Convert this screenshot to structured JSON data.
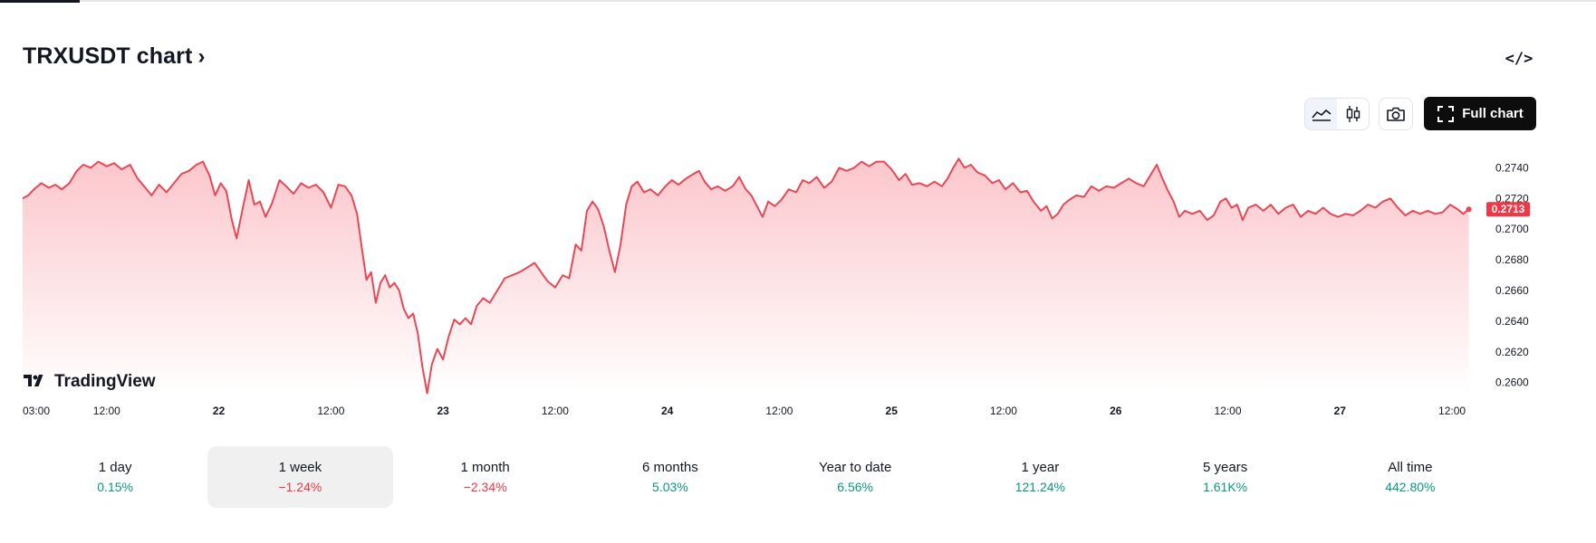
{
  "header": {
    "title": "TRXUSDT chart",
    "title_chevron": "›",
    "embed_label": "</>",
    "full_chart_label": "Full chart"
  },
  "colors": {
    "line": "#e84756",
    "area_top": "#fbc6cb",
    "area_bottom": "#ffffff",
    "price_badge": "#f23645",
    "positive": "#089981",
    "negative": "#f23645"
  },
  "icons": {
    "area_style": "area-chart-icon",
    "candle_style": "candlestick-icon",
    "screenshot": "camera-icon",
    "fullscreen": "fullscreen-icon",
    "brand": "tradingview-logo-icon"
  },
  "brand_text": "TradingView",
  "chart_data": {
    "type": "area",
    "title": "TRXUSDT chart",
    "xlabel": "",
    "ylabel": "",
    "last_price": 0.2713,
    "last_price_label": "0.2713",
    "ylim": [
      0.2591,
      0.2755
    ],
    "yticks": [
      "0.2740",
      "0.2720",
      "0.2700",
      "0.2680",
      "0.2660",
      "0.2640",
      "0.2620",
      "0.2600"
    ],
    "ytick_values": [
      0.274,
      0.272,
      0.27,
      0.268,
      0.266,
      0.264,
      0.262,
      0.26
    ],
    "xlim": [
      3,
      159
    ],
    "xticks": [
      {
        "t": 3,
        "label": "03:00",
        "bold": false
      },
      {
        "t": 12,
        "label": "12:00",
        "bold": false
      },
      {
        "t": 24,
        "label": "22",
        "bold": true
      },
      {
        "t": 36,
        "label": "12:00",
        "bold": false
      },
      {
        "t": 48,
        "label": "23",
        "bold": true
      },
      {
        "t": 60,
        "label": "12:00",
        "bold": false
      },
      {
        "t": 72,
        "label": "24",
        "bold": true
      },
      {
        "t": 84,
        "label": "12:00",
        "bold": false
      },
      {
        "t": 96,
        "label": "25",
        "bold": true
      },
      {
        "t": 108,
        "label": "12:00",
        "bold": false
      },
      {
        "t": 120,
        "label": "26",
        "bold": true
      },
      {
        "t": 132,
        "label": "12:00",
        "bold": false
      },
      {
        "t": 144,
        "label": "27",
        "bold": true
      },
      {
        "t": 156,
        "label": "12:00",
        "bold": false
      }
    ],
    "series": [
      {
        "points": [
          [
            3.0,
            0.272
          ],
          [
            3.6,
            0.2722
          ],
          [
            4.2,
            0.2726
          ],
          [
            5.0,
            0.273
          ],
          [
            5.8,
            0.2727
          ],
          [
            6.5,
            0.2729
          ],
          [
            7.2,
            0.2726
          ],
          [
            8.0,
            0.273
          ],
          [
            8.8,
            0.2738
          ],
          [
            9.5,
            0.2742
          ],
          [
            10.3,
            0.274
          ],
          [
            11.1,
            0.2744
          ],
          [
            12.0,
            0.2741
          ],
          [
            12.8,
            0.2743
          ],
          [
            13.6,
            0.2739
          ],
          [
            14.5,
            0.2742
          ],
          [
            15.3,
            0.2733
          ],
          [
            16.0,
            0.2728
          ],
          [
            16.8,
            0.2722
          ],
          [
            17.6,
            0.2729
          ],
          [
            18.4,
            0.2724
          ],
          [
            19.2,
            0.273
          ],
          [
            20.0,
            0.2736
          ],
          [
            20.8,
            0.2738
          ],
          [
            21.6,
            0.2742
          ],
          [
            22.3,
            0.2744
          ],
          [
            23.0,
            0.2735
          ],
          [
            23.6,
            0.2722
          ],
          [
            24.2,
            0.273
          ],
          [
            24.8,
            0.2725
          ],
          [
            25.4,
            0.2706
          ],
          [
            25.9,
            0.2694
          ],
          [
            26.5,
            0.2712
          ],
          [
            27.2,
            0.2732
          ],
          [
            27.8,
            0.2716
          ],
          [
            28.4,
            0.2718
          ],
          [
            29.0,
            0.2708
          ],
          [
            29.7,
            0.2717
          ],
          [
            30.5,
            0.2732
          ],
          [
            31.2,
            0.2728
          ],
          [
            32.0,
            0.2723
          ],
          [
            32.8,
            0.273
          ],
          [
            33.6,
            0.2727
          ],
          [
            34.4,
            0.2729
          ],
          [
            35.2,
            0.2724
          ],
          [
            36.0,
            0.2714
          ],
          [
            36.8,
            0.2729
          ],
          [
            37.5,
            0.2728
          ],
          [
            38.2,
            0.2722
          ],
          [
            38.8,
            0.271
          ],
          [
            39.3,
            0.2688
          ],
          [
            39.8,
            0.2667
          ],
          [
            40.3,
            0.2672
          ],
          [
            40.8,
            0.2652
          ],
          [
            41.3,
            0.2665
          ],
          [
            41.8,
            0.267
          ],
          [
            42.3,
            0.2662
          ],
          [
            42.8,
            0.2665
          ],
          [
            43.3,
            0.266
          ],
          [
            43.8,
            0.2648
          ],
          [
            44.3,
            0.2642
          ],
          [
            44.8,
            0.2645
          ],
          [
            45.3,
            0.2632
          ],
          [
            45.8,
            0.261
          ],
          [
            46.3,
            0.2593
          ],
          [
            46.8,
            0.2612
          ],
          [
            47.4,
            0.2622
          ],
          [
            48.0,
            0.2615
          ],
          [
            48.6,
            0.263
          ],
          [
            49.2,
            0.2641
          ],
          [
            49.8,
            0.2638
          ],
          [
            50.4,
            0.2642
          ],
          [
            51.0,
            0.2638
          ],
          [
            51.6,
            0.265
          ],
          [
            52.3,
            0.2655
          ],
          [
            53.0,
            0.2652
          ],
          [
            53.8,
            0.266
          ],
          [
            54.6,
            0.2668
          ],
          [
            55.4,
            0.267
          ],
          [
            56.2,
            0.2672
          ],
          [
            57.0,
            0.2675
          ],
          [
            57.8,
            0.2678
          ],
          [
            58.5,
            0.2672
          ],
          [
            59.2,
            0.2666
          ],
          [
            60.0,
            0.2662
          ],
          [
            60.8,
            0.267
          ],
          [
            61.5,
            0.2668
          ],
          [
            62.2,
            0.269
          ],
          [
            62.8,
            0.2686
          ],
          [
            63.4,
            0.2712
          ],
          [
            64.0,
            0.2718
          ],
          [
            64.6,
            0.2713
          ],
          [
            65.2,
            0.2702
          ],
          [
            65.8,
            0.2686
          ],
          [
            66.4,
            0.2672
          ],
          [
            67.0,
            0.269
          ],
          [
            67.6,
            0.2716
          ],
          [
            68.2,
            0.2728
          ],
          [
            68.8,
            0.2731
          ],
          [
            69.5,
            0.2724
          ],
          [
            70.2,
            0.2726
          ],
          [
            71.0,
            0.2722
          ],
          [
            71.8,
            0.2728
          ],
          [
            72.5,
            0.2732
          ],
          [
            73.2,
            0.2729
          ],
          [
            74.0,
            0.2733
          ],
          [
            74.8,
            0.2736
          ],
          [
            75.4,
            0.2738
          ],
          [
            76.0,
            0.2731
          ],
          [
            76.7,
            0.2726
          ],
          [
            77.4,
            0.2728
          ],
          [
            78.2,
            0.2725
          ],
          [
            79.0,
            0.2728
          ],
          [
            79.7,
            0.2734
          ],
          [
            80.4,
            0.2726
          ],
          [
            81.0,
            0.2722
          ],
          [
            81.6,
            0.2715
          ],
          [
            82.2,
            0.2708
          ],
          [
            82.8,
            0.2718
          ],
          [
            83.5,
            0.2715
          ],
          [
            84.2,
            0.2719
          ],
          [
            85.0,
            0.2726
          ],
          [
            85.8,
            0.2724
          ],
          [
            86.5,
            0.2732
          ],
          [
            87.2,
            0.273
          ],
          [
            88.0,
            0.2734
          ],
          [
            88.8,
            0.2727
          ],
          [
            89.6,
            0.2731
          ],
          [
            90.4,
            0.274
          ],
          [
            91.2,
            0.2738
          ],
          [
            92.0,
            0.274
          ],
          [
            92.8,
            0.2744
          ],
          [
            93.6,
            0.2741
          ],
          [
            94.4,
            0.2744
          ],
          [
            95.2,
            0.2744
          ],
          [
            96.0,
            0.2739
          ],
          [
            96.8,
            0.2732
          ],
          [
            97.5,
            0.2736
          ],
          [
            98.2,
            0.2729
          ],
          [
            99.0,
            0.273
          ],
          [
            99.8,
            0.2728
          ],
          [
            100.6,
            0.2731
          ],
          [
            101.4,
            0.2728
          ],
          [
            102.0,
            0.2733
          ],
          [
            102.6,
            0.274
          ],
          [
            103.2,
            0.2746
          ],
          [
            103.8,
            0.274
          ],
          [
            104.5,
            0.2742
          ],
          [
            105.2,
            0.2737
          ],
          [
            106.0,
            0.2735
          ],
          [
            106.8,
            0.273
          ],
          [
            107.5,
            0.2732
          ],
          [
            108.2,
            0.2726
          ],
          [
            109.0,
            0.273
          ],
          [
            109.8,
            0.2724
          ],
          [
            110.5,
            0.2725
          ],
          [
            111.2,
            0.2718
          ],
          [
            112.0,
            0.2712
          ],
          [
            112.6,
            0.2715
          ],
          [
            113.2,
            0.2707
          ],
          [
            113.8,
            0.271
          ],
          [
            114.4,
            0.2716
          ],
          [
            115.0,
            0.2719
          ],
          [
            115.8,
            0.2722
          ],
          [
            116.6,
            0.2721
          ],
          [
            117.4,
            0.2728
          ],
          [
            118.2,
            0.2725
          ],
          [
            119.0,
            0.2728
          ],
          [
            119.8,
            0.2727
          ],
          [
            120.6,
            0.273
          ],
          [
            121.4,
            0.2733
          ],
          [
            122.2,
            0.273
          ],
          [
            123.0,
            0.2728
          ],
          [
            123.8,
            0.2736
          ],
          [
            124.4,
            0.2742
          ],
          [
            125.0,
            0.2733
          ],
          [
            125.6,
            0.2725
          ],
          [
            126.2,
            0.2718
          ],
          [
            126.8,
            0.2708
          ],
          [
            127.4,
            0.2712
          ],
          [
            128.2,
            0.271
          ],
          [
            129.0,
            0.2712
          ],
          [
            129.8,
            0.2706
          ],
          [
            130.5,
            0.2709
          ],
          [
            131.2,
            0.2718
          ],
          [
            131.8,
            0.272
          ],
          [
            132.4,
            0.2714
          ],
          [
            133.0,
            0.2716
          ],
          [
            133.6,
            0.2706
          ],
          [
            134.2,
            0.2714
          ],
          [
            135.0,
            0.2716
          ],
          [
            135.8,
            0.2712
          ],
          [
            136.6,
            0.2716
          ],
          [
            137.4,
            0.271
          ],
          [
            138.2,
            0.2714
          ],
          [
            139.0,
            0.2716
          ],
          [
            139.8,
            0.2708
          ],
          [
            140.6,
            0.2712
          ],
          [
            141.4,
            0.271
          ],
          [
            142.2,
            0.2714
          ],
          [
            143.0,
            0.271
          ],
          [
            143.8,
            0.2708
          ],
          [
            144.6,
            0.271
          ],
          [
            145.4,
            0.2709
          ],
          [
            146.2,
            0.2712
          ],
          [
            147.0,
            0.2716
          ],
          [
            147.8,
            0.2714
          ],
          [
            148.6,
            0.2718
          ],
          [
            149.4,
            0.272
          ],
          [
            150.2,
            0.2714
          ],
          [
            151.0,
            0.2709
          ],
          [
            151.8,
            0.2712
          ],
          [
            152.6,
            0.271
          ],
          [
            153.4,
            0.2712
          ],
          [
            154.2,
            0.271
          ],
          [
            155.0,
            0.2711
          ],
          [
            155.8,
            0.2716
          ],
          [
            156.6,
            0.2713
          ],
          [
            157.2,
            0.271
          ],
          [
            157.8,
            0.2713
          ]
        ]
      }
    ]
  },
  "periods": [
    {
      "label": "1 day",
      "change": "0.15%",
      "sign": "pos",
      "selected": false
    },
    {
      "label": "1 week",
      "change": "−1.24%",
      "sign": "neg",
      "selected": true
    },
    {
      "label": "1 month",
      "change": "−2.34%",
      "sign": "neg",
      "selected": false
    },
    {
      "label": "6 months",
      "change": "5.03%",
      "sign": "pos",
      "selected": false
    },
    {
      "label": "Year to date",
      "change": "6.56%",
      "sign": "pos",
      "selected": false
    },
    {
      "label": "1 year",
      "change": "121.24%",
      "sign": "pos",
      "selected": false
    },
    {
      "label": "5 years",
      "change": "1.61K%",
      "sign": "pos",
      "selected": false
    },
    {
      "label": "All time",
      "change": "442.80%",
      "sign": "pos",
      "selected": false
    }
  ]
}
